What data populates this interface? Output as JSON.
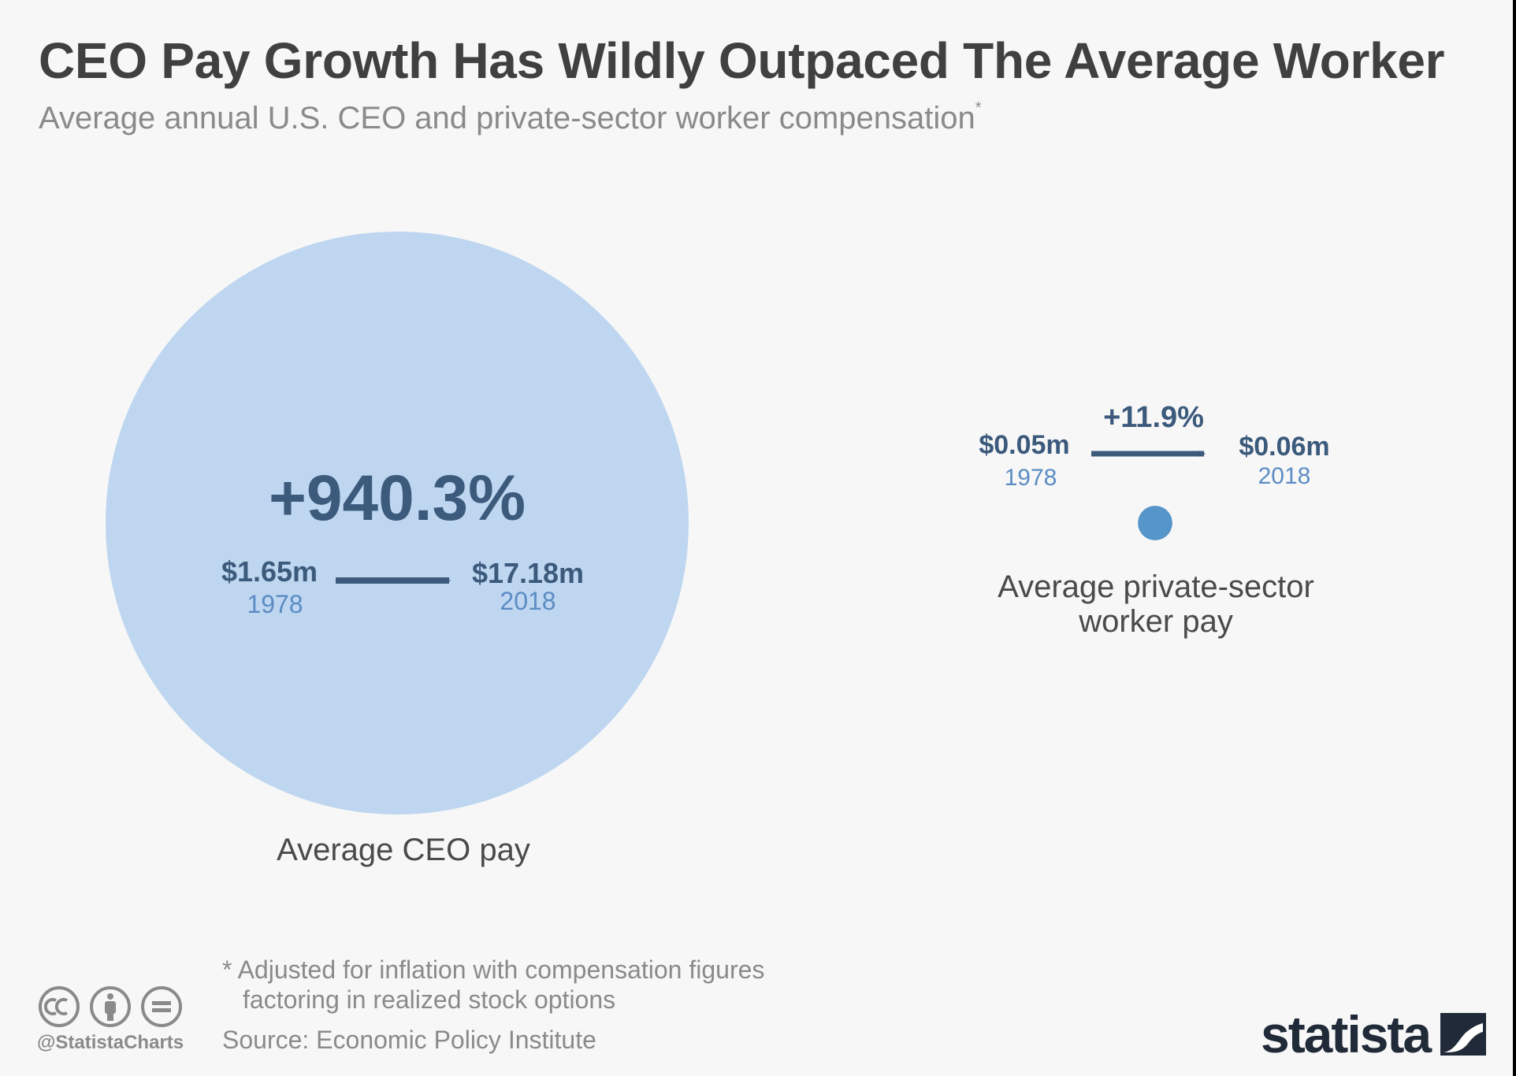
{
  "title": "CEO Pay Growth Has Wildly Outpaced The Average Worker",
  "subtitle": "Average annual U.S. CEO and private-sector worker compensation",
  "subtitle_marker": "*",
  "chart_data": {
    "type": "bubble",
    "title": "CEO Pay Growth Has Wildly Outpaced The Average Worker",
    "subtitle": "Average annual U.S. CEO and private-sector worker compensation",
    "unit": "million USD",
    "years": [
      "1978",
      "2018"
    ],
    "series": [
      {
        "name": "Average CEO pay",
        "values": [
          1.65,
          17.18
        ],
        "value_labels": [
          "$1.65m",
          "$17.18m"
        ],
        "year_labels": [
          "1978",
          "2018"
        ],
        "change_label": "+940.3%",
        "change_pct": 940.3,
        "color": "#bed6f0"
      },
      {
        "name": "Average private-sector worker pay",
        "values": [
          0.05,
          0.06
        ],
        "value_labels": [
          "$0.05m",
          "$0.06m"
        ],
        "year_labels": [
          "1978",
          "2018"
        ],
        "change_label": "+11.9%",
        "change_pct": 11.9,
        "color": "#5595c9"
      }
    ]
  },
  "colors": {
    "background": "#f7f7f7",
    "ceo_bubble": "#bed6f0",
    "worker_bubble": "#5595c9",
    "arrow": "#3c5a7c",
    "text_dark": "#404040",
    "text_muted": "#8a8a8a",
    "year_text": "#5c8cc4"
  },
  "footnote": {
    "line1": "* Adjusted for inflation with compensation figures",
    "line2": "factoring in realized stock options"
  },
  "source": "Source: Economic Policy Institute",
  "branding": {
    "handle": "@StatistaCharts",
    "logo_text": "statista",
    "icons": [
      "creative-commons-icon",
      "attribution-icon",
      "no-derivatives-icon"
    ]
  }
}
